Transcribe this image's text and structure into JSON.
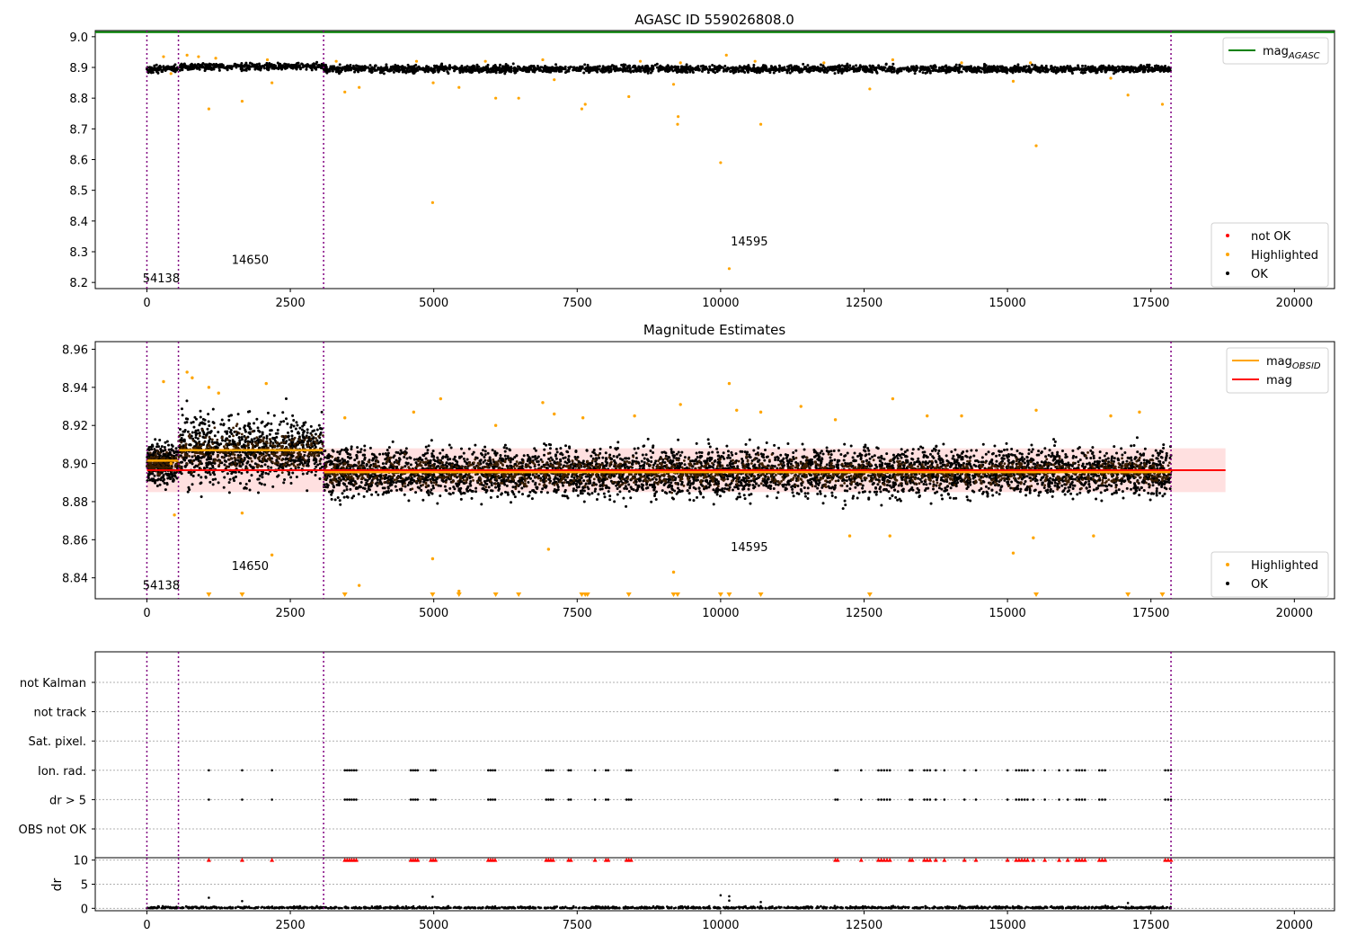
{
  "chart_data": [
    {
      "type": "scatter",
      "title": "AGASC ID 559026808.0",
      "xlim": [
        -900,
        20700
      ],
      "ylim": [
        8.18,
        9.02
      ],
      "xticks": [
        0,
        2500,
        5000,
        7500,
        10000,
        12500,
        15000,
        17500,
        20000
      ],
      "yticks": [
        8.2,
        8.3,
        8.4,
        8.5,
        8.6,
        8.7,
        8.8,
        8.9,
        9.0
      ],
      "ytick_format": 1,
      "obs_boundaries": [
        0,
        550,
        3080,
        17850
      ],
      "obs_labels": [
        {
          "text": "54138",
          "x": 250,
          "y": 8.2
        },
        {
          "text": "14650",
          "x": 1800,
          "y": 8.26
        },
        {
          "text": "14595",
          "x": 10500,
          "y": 8.32
        }
      ],
      "agasc_mag": 9.015,
      "ok_band": {
        "x": [
          0,
          17850
        ],
        "center": 8.895,
        "half_width": 0.018,
        "peak_extra": 0.012
      },
      "highlighted": [
        [
          290,
          8.935
        ],
        [
          420,
          8.88
        ],
        [
          1080,
          8.765
        ],
        [
          1660,
          8.79
        ],
        [
          2180,
          8.85
        ],
        [
          3450,
          8.82
        ],
        [
          3700,
          8.835
        ],
        [
          4980,
          8.46
        ],
        [
          4990,
          8.85
        ],
        [
          5440,
          8.835
        ],
        [
          6080,
          8.8
        ],
        [
          6480,
          8.8
        ],
        [
          7580,
          8.765
        ],
        [
          7640,
          8.78
        ],
        [
          8400,
          8.805
        ],
        [
          9180,
          8.845
        ],
        [
          9250,
          8.715
        ],
        [
          9260,
          8.74
        ],
        [
          10000,
          8.59
        ],
        [
          10150,
          8.245
        ],
        [
          10700,
          8.715
        ],
        [
          12600,
          8.83
        ],
        [
          15100,
          8.855
        ],
        [
          15500,
          8.645
        ],
        [
          17100,
          8.81
        ],
        [
          17700,
          8.78
        ],
        [
          700,
          8.94
        ],
        [
          900,
          8.935
        ],
        [
          1200,
          8.93
        ],
        [
          2100,
          8.925
        ],
        [
          3300,
          8.92
        ],
        [
          4700,
          8.92
        ],
        [
          5900,
          8.92
        ],
        [
          6900,
          8.925
        ],
        [
          7100,
          8.86
        ],
        [
          8600,
          8.92
        ],
        [
          9300,
          8.915
        ],
        [
          10100,
          8.94
        ],
        [
          10600,
          8.92
        ],
        [
          11800,
          8.915
        ],
        [
          13000,
          8.925
        ],
        [
          14200,
          8.915
        ],
        [
          15400,
          8.915
        ],
        [
          16800,
          8.865
        ]
      ],
      "legend_top": [
        {
          "label": "mag",
          "sub": "AGASC",
          "color": "#008000",
          "kind": "line"
        }
      ],
      "legend_bottom": [
        {
          "label": "not OK",
          "color": "#ff0000",
          "kind": "dot"
        },
        {
          "label": "Highlighted",
          "color": "#ffa500",
          "kind": "dot"
        },
        {
          "label": "OK",
          "color": "#000000",
          "kind": "dot"
        }
      ]
    },
    {
      "type": "scatter",
      "title": "Magnitude Estimates",
      "xlim": [
        -900,
        20700
      ],
      "ylim": [
        8.829,
        8.964
      ],
      "xticks": [
        0,
        2500,
        5000,
        7500,
        10000,
        12500,
        15000,
        17500,
        20000
      ],
      "yticks": [
        8.84,
        8.86,
        8.88,
        8.9,
        8.92,
        8.94,
        8.96
      ],
      "ytick_format": 2,
      "obs_boundaries": [
        0,
        550,
        3080,
        17850
      ],
      "obs_labels": [
        {
          "text": "54138",
          "x": 250,
          "y": 8.834
        },
        {
          "text": "14650",
          "x": 1800,
          "y": 8.844
        },
        {
          "text": "14595",
          "x": 10500,
          "y": 8.854
        }
      ],
      "mag": 8.8965,
      "mag_band": [
        8.885,
        8.908
      ],
      "mag_band_x": [
        0,
        18800
      ],
      "obs_mag": [
        {
          "x": [
            0,
            550
          ],
          "y": 8.9015
        },
        {
          "x": [
            550,
            3080
          ],
          "y": 8.907
        },
        {
          "x": [
            3080,
            17850
          ],
          "y": 8.8955
        }
      ],
      "ok_segments": [
        {
          "x": [
            0,
            550
          ],
          "center": 8.9,
          "spread": 0.022
        },
        {
          "x": [
            550,
            3080
          ],
          "center": 8.907,
          "spread": 0.038
        },
        {
          "x": [
            3080,
            17850
          ],
          "center": 8.8955,
          "spread": 0.027
        }
      ],
      "highlighted": [
        [
          290,
          8.943
        ],
        [
          420,
          8.9
        ],
        [
          480,
          8.873
        ],
        [
          700,
          8.948
        ],
        [
          790,
          8.945
        ],
        [
          1080,
          8.94
        ],
        [
          1250,
          8.937
        ],
        [
          1660,
          8.874
        ],
        [
          2080,
          8.942
        ],
        [
          2180,
          8.852
        ],
        [
          3450,
          8.924
        ],
        [
          3700,
          8.836
        ],
        [
          4650,
          8.927
        ],
        [
          4980,
          8.85
        ],
        [
          5120,
          8.934
        ],
        [
          5440,
          8.833
        ],
        [
          6080,
          8.92
        ],
        [
          6900,
          8.932
        ],
        [
          7000,
          8.855
        ],
        [
          7100,
          8.926
        ],
        [
          7600,
          8.924
        ],
        [
          8500,
          8.925
        ],
        [
          9180,
          8.843
        ],
        [
          9300,
          8.931
        ],
        [
          10150,
          8.942
        ],
        [
          10280,
          8.928
        ],
        [
          10700,
          8.927
        ],
        [
          11400,
          8.93
        ],
        [
          12000,
          8.923
        ],
        [
          12250,
          8.862
        ],
        [
          12950,
          8.862
        ],
        [
          13000,
          8.934
        ],
        [
          13600,
          8.925
        ],
        [
          14200,
          8.925
        ],
        [
          15100,
          8.853
        ],
        [
          15450,
          8.861
        ],
        [
          15500,
          8.928
        ],
        [
          16500,
          8.862
        ],
        [
          16800,
          8.925
        ],
        [
          17300,
          8.927
        ]
      ],
      "below_markers": [
        1080,
        1660,
        3450,
        4980,
        5440,
        6080,
        6480,
        7580,
        7640,
        7680,
        8400,
        9180,
        9250,
        10000,
        10150,
        10700,
        12600,
        15500,
        17100,
        17700
      ],
      "legend_top": [
        {
          "label": "mag",
          "sub": "OBSID",
          "color": "#ffa500",
          "kind": "line"
        },
        {
          "label": "mag",
          "sub": "",
          "color": "#ff0000",
          "kind": "line"
        }
      ],
      "legend_bottom": [
        {
          "label": "Highlighted",
          "color": "#ffa500",
          "kind": "dot"
        },
        {
          "label": "OK",
          "color": "#000000",
          "kind": "dot"
        }
      ]
    },
    {
      "type": "scatter",
      "title": "",
      "xlim": [
        -900,
        20700
      ],
      "categories": [
        "not Kalman",
        "not track",
        "Sat. pixel.",
        "Ion. rad.",
        "dr > 5",
        "OBS not OK"
      ],
      "obs_boundaries": [
        0,
        550,
        3080,
        17850
      ],
      "flag_times": [
        1080,
        1660,
        2180,
        3450,
        3490,
        3530,
        3570,
        3610,
        3650,
        4600,
        4640,
        4680,
        4720,
        4950,
        4990,
        5030,
        5950,
        5990,
        6030,
        6070,
        6960,
        7000,
        7040,
        7080,
        7350,
        7390,
        7810,
        8000,
        8040,
        8360,
        8400,
        8440,
        12000,
        12040,
        12450,
        12750,
        12800,
        12850,
        12900,
        12950,
        13300,
        13340,
        13550,
        13600,
        13650,
        13750,
        13900,
        14250,
        14450,
        15000,
        15150,
        15200,
        15250,
        15300,
        15350,
        15450,
        15650,
        15900,
        16050,
        16200,
        16250,
        16300,
        16350,
        16600,
        16650,
        16700,
        17750,
        17800,
        17850
      ],
      "flag_rows": [
        "Ion. rad.",
        "dr > 5"
      ]
    },
    {
      "type": "scatter",
      "title": "",
      "ylabel": "dr",
      "xlim": [
        -900,
        20700
      ],
      "ylim": [
        -0.5,
        10.5
      ],
      "xticks": [
        0,
        2500,
        5000,
        7500,
        10000,
        12500,
        15000,
        17500,
        20000
      ],
      "yticks": [
        0,
        5,
        10
      ],
      "obs_boundaries": [
        0,
        550,
        3080,
        17850
      ],
      "dr_cap": 10,
      "dr_outliers": [
        [
          1080,
          2.2
        ],
        [
          1660,
          1.5
        ],
        [
          4980,
          2.4
        ],
        [
          10000,
          2.7
        ],
        [
          10150,
          2.5
        ],
        [
          10150,
          1.6
        ],
        [
          10700,
          1.3
        ],
        [
          17100,
          1.1
        ]
      ]
    }
  ]
}
